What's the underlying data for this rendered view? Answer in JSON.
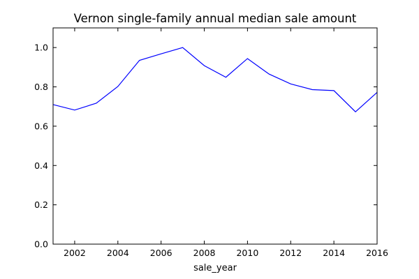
{
  "chart_data": {
    "type": "line",
    "title": "Vernon single-family annual median sale amount",
    "xlabel": "sale_year",
    "ylabel": "",
    "xlim": [
      2001,
      2016
    ],
    "ylim": [
      0.0,
      1.1
    ],
    "xticks": [
      2002,
      2004,
      2006,
      2008,
      2010,
      2012,
      2014,
      2016
    ],
    "xtick_labels": [
      "2002",
      "2004",
      "2006",
      "2008",
      "2010",
      "2012",
      "2014",
      "2016"
    ],
    "yticks": [
      0.0,
      0.2,
      0.4,
      0.6,
      0.8,
      1.0
    ],
    "ytick_labels": [
      "0.0",
      "0.2",
      "0.4",
      "0.6",
      "0.8",
      "1.0"
    ],
    "grid": false,
    "legend": "none",
    "series": [
      {
        "color": "#0000ff",
        "x": [
          2001,
          2002,
          2003,
          2004,
          2005,
          2006,
          2007,
          2008,
          2009,
          2010,
          2011,
          2012,
          2013,
          2014,
          2015,
          2016
        ],
        "y": [
          0.71,
          0.682,
          0.717,
          0.802,
          0.935,
          0.968,
          1.0,
          0.908,
          0.849,
          0.944,
          0.865,
          0.815,
          0.786,
          0.781,
          0.673,
          0.772
        ]
      }
    ]
  }
}
